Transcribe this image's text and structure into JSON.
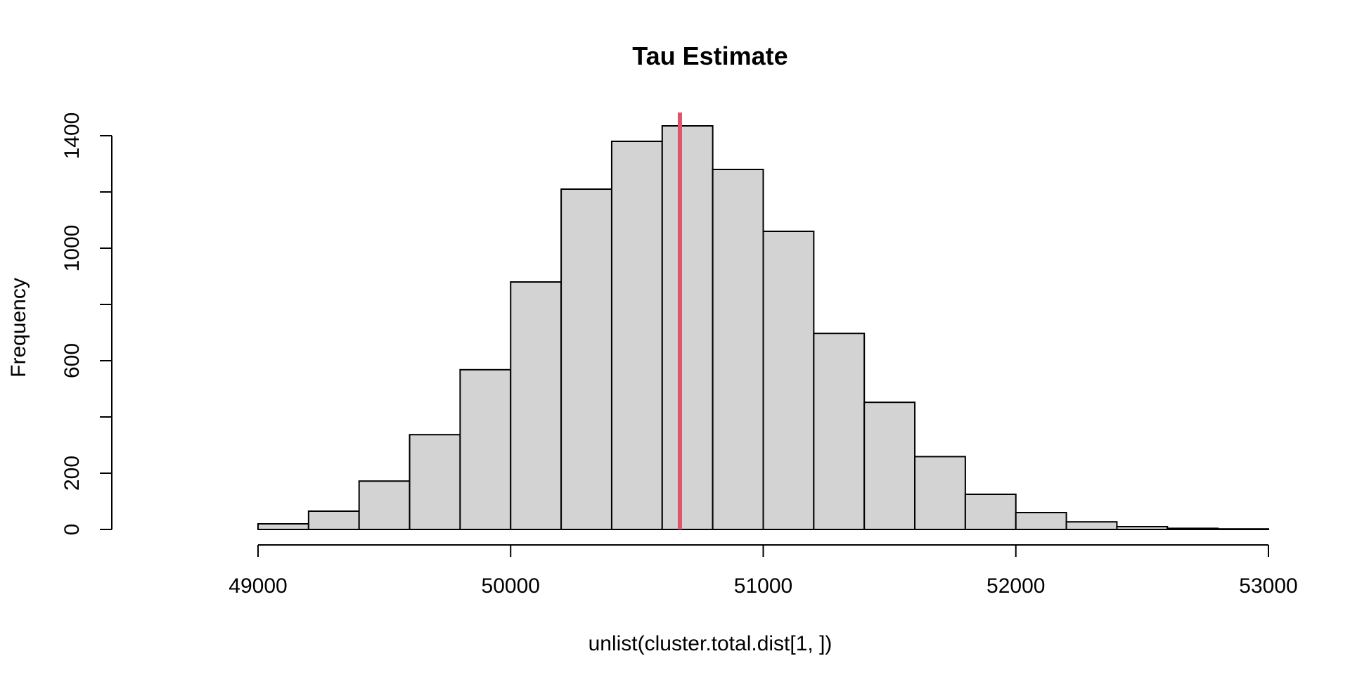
{
  "chart_data": {
    "type": "bar",
    "subtype": "histogram",
    "title": "Tau Estimate",
    "xlabel": "unlist(cluster.total.dist[1, ])",
    "ylabel": "Frequency",
    "bin_width": 200,
    "bins": [
      {
        "start": 48600,
        "end": 48800,
        "count": 0
      },
      {
        "start": 48800,
        "end": 49000,
        "count": 0
      },
      {
        "start": 49000,
        "end": 49200,
        "count": 20
      },
      {
        "start": 49200,
        "end": 49400,
        "count": 65
      },
      {
        "start": 49400,
        "end": 49600,
        "count": 172
      },
      {
        "start": 49600,
        "end": 49800,
        "count": 337
      },
      {
        "start": 49800,
        "end": 50000,
        "count": 568
      },
      {
        "start": 50000,
        "end": 50200,
        "count": 880
      },
      {
        "start": 50200,
        "end": 50400,
        "count": 1210
      },
      {
        "start": 50400,
        "end": 50600,
        "count": 1380
      },
      {
        "start": 50600,
        "end": 50800,
        "count": 1435
      },
      {
        "start": 50800,
        "end": 51000,
        "count": 1280
      },
      {
        "start": 51000,
        "end": 51200,
        "count": 1060
      },
      {
        "start": 51200,
        "end": 51400,
        "count": 697
      },
      {
        "start": 51400,
        "end": 51600,
        "count": 452
      },
      {
        "start": 51600,
        "end": 51800,
        "count": 259
      },
      {
        "start": 51800,
        "end": 52000,
        "count": 125
      },
      {
        "start": 52000,
        "end": 52200,
        "count": 60
      },
      {
        "start": 52200,
        "end": 52400,
        "count": 27
      },
      {
        "start": 52400,
        "end": 52600,
        "count": 10
      },
      {
        "start": 52600,
        "end": 52800,
        "count": 4
      },
      {
        "start": 52800,
        "end": 53000,
        "count": 2
      }
    ],
    "reference_line": {
      "x": 50670,
      "color": "#df536b"
    },
    "x_ticks": [
      49000,
      50000,
      51000,
      52000,
      53000
    ],
    "y_ticks": [
      0,
      200,
      600,
      1000,
      1400
    ],
    "y_minor_ticks": [
      400,
      800,
      1200
    ],
    "xlim": [
      48600,
      53000
    ],
    "ylim": [
      0,
      1435
    ],
    "grid": false,
    "bar_fill": "#d3d3d3",
    "bar_stroke": "#000000"
  }
}
